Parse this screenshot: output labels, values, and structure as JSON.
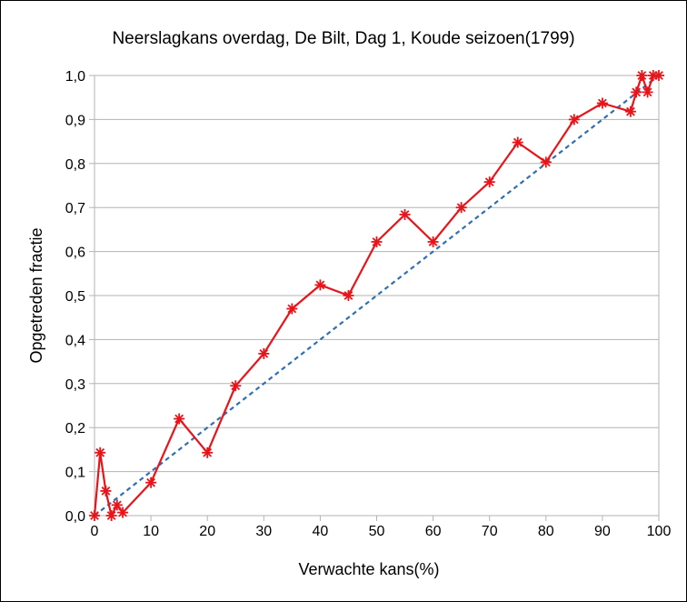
{
  "chart_data": {
    "type": "line",
    "title": "Neerslagkans overdag, De Bilt, Dag 1, Koude seizoen(1799)",
    "xlabel": "Verwachte kans(%)",
    "ylabel": "Opgetreden fractie",
    "xlim": [
      0,
      100
    ],
    "ylim": [
      0,
      1
    ],
    "x_ticks": [
      "0",
      "10",
      "20",
      "30",
      "40",
      "50",
      "60",
      "70",
      "80",
      "90",
      "100"
    ],
    "y_ticks": [
      "0,0",
      "0,1",
      "0,2",
      "0,3",
      "0,4",
      "0,5",
      "0,6",
      "0,7",
      "0,8",
      "0,9",
      "1,0"
    ],
    "grid": "horizontal",
    "series": [
      {
        "color": "#e8141a",
        "style": "solid-with-star-markers",
        "x": [
          0,
          1,
          2,
          3,
          4,
          5,
          10,
          15,
          20,
          25,
          30,
          35,
          40,
          45,
          50,
          55,
          60,
          65,
          70,
          75,
          80,
          85,
          90,
          95,
          96,
          97,
          98,
          99,
          100
        ],
        "y": [
          0.0,
          0.143,
          0.056,
          0.0,
          0.024,
          0.007,
          0.075,
          0.22,
          0.143,
          0.295,
          0.368,
          0.47,
          0.524,
          0.5,
          0.622,
          0.684,
          0.622,
          0.7,
          0.758,
          0.848,
          0.803,
          0.9,
          0.937,
          0.918,
          0.962,
          1.0,
          0.962,
          1.0,
          1.0
        ]
      },
      {
        "color": "#2f6fb2",
        "style": "dashed",
        "x": [
          0,
          100
        ],
        "y": [
          0,
          1
        ]
      }
    ]
  }
}
